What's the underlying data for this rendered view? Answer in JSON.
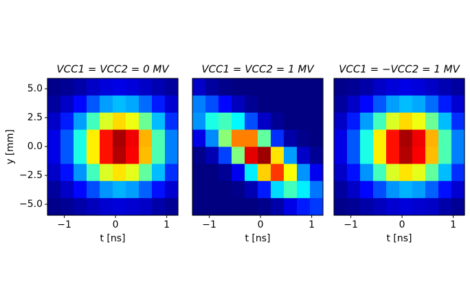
{
  "chart_data": [
    {
      "type": "heatmap",
      "title": "VCC1 = VCC2 = 0 MV",
      "xlabel": "t [ns]",
      "ylabel": "y [mm]",
      "colormap": "jet",
      "xlim": [
        -1.33,
        1.22
      ],
      "ylim": [
        -5.95,
        5.9
      ],
      "xticks": [
        {
          "value": -1,
          "label": "−1"
        },
        0,
        1
      ],
      "yticks": [
        {
          "value": 5,
          "label": "5.0"
        },
        {
          "value": 2.5,
          "label": "2.5"
        },
        {
          "value": 0,
          "label": "0.0"
        },
        {
          "value": -2.5,
          "label": "−2.5"
        },
        {
          "value": -5,
          "label": "−5.0"
        }
      ],
      "z": [
        [
          0.01,
          0.02,
          0.04,
          0.07,
          0.09,
          0.1,
          0.09,
          0.07,
          0.05,
          0.03
        ],
        [
          0.03,
          0.07,
          0.13,
          0.21,
          0.28,
          0.31,
          0.29,
          0.23,
          0.15,
          0.08
        ],
        [
          0.07,
          0.15,
          0.28,
          0.44,
          0.59,
          0.66,
          0.61,
          0.48,
          0.31,
          0.17
        ],
        [
          0.1,
          0.21,
          0.4,
          0.64,
          0.86,
          0.96,
          0.89,
          0.7,
          0.45,
          0.25
        ],
        [
          0.1,
          0.21,
          0.4,
          0.64,
          0.86,
          0.95,
          0.88,
          0.69,
          0.45,
          0.25
        ],
        [
          0.07,
          0.14,
          0.27,
          0.44,
          0.59,
          0.65,
          0.6,
          0.47,
          0.31,
          0.17
        ],
        [
          0.03,
          0.07,
          0.13,
          0.2,
          0.27,
          0.3,
          0.28,
          0.22,
          0.14,
          0.08
        ],
        [
          0.01,
          0.02,
          0.04,
          0.06,
          0.08,
          0.09,
          0.08,
          0.07,
          0.04,
          0.02
        ]
      ]
    },
    {
      "type": "heatmap",
      "title": "VCC1 = VCC2 = 1 MV",
      "xlabel": "t [ns]",
      "colormap": "jet",
      "xlim": [
        -1.33,
        1.22
      ],
      "ylim": [
        -5.95,
        5.9
      ],
      "xticks": [
        {
          "value": -1,
          "label": "−1"
        },
        0,
        1
      ],
      "z": [
        [
          0.07,
          0.03,
          0.01,
          0,
          0,
          0,
          0,
          0,
          0,
          0
        ],
        [
          0.25,
          0.2,
          0.13,
          0.06,
          0.02,
          0,
          0,
          0,
          0,
          0
        ],
        [
          0.27,
          0.4,
          0.44,
          0.37,
          0.2,
          0.07,
          0.02,
          0,
          0,
          0
        ],
        [
          0.1,
          0.26,
          0.51,
          0.75,
          0.75,
          0.47,
          0.17,
          0.04,
          0.01,
          0
        ],
        [
          0.01,
          0.05,
          0.19,
          0.5,
          0.9,
          0.97,
          0.65,
          0.28,
          0.07,
          0.02
        ],
        [
          0,
          0,
          0.02,
          0.11,
          0.36,
          0.67,
          0.82,
          0.62,
          0.27,
          0.11
        ],
        [
          0,
          0,
          0,
          0.01,
          0.05,
          0.15,
          0.34,
          0.44,
          0.36,
          0.24
        ],
        [
          0,
          0,
          0,
          0,
          0,
          0.01,
          0.04,
          0.1,
          0.15,
          0.18
        ]
      ]
    },
    {
      "type": "heatmap",
      "title": "VCC1 = −VCC2 = 1 MV",
      "xlabel": "t [ns]",
      "colormap": "jet",
      "xlim": [
        -1.33,
        1.22
      ],
      "ylim": [
        -5.95,
        5.9
      ],
      "xticks": [
        {
          "value": -1,
          "label": "−1"
        },
        0,
        1
      ],
      "z": [
        [
          0.01,
          0.02,
          0.04,
          0.07,
          0.09,
          0.1,
          0.09,
          0.07,
          0.05,
          0.03
        ],
        [
          0.03,
          0.07,
          0.13,
          0.21,
          0.28,
          0.31,
          0.29,
          0.23,
          0.15,
          0.08
        ],
        [
          0.07,
          0.15,
          0.28,
          0.44,
          0.59,
          0.66,
          0.61,
          0.48,
          0.31,
          0.17
        ],
        [
          0.1,
          0.21,
          0.4,
          0.64,
          0.86,
          0.96,
          0.89,
          0.7,
          0.45,
          0.25
        ],
        [
          0.1,
          0.21,
          0.4,
          0.64,
          0.86,
          0.95,
          0.88,
          0.69,
          0.45,
          0.25
        ],
        [
          0.07,
          0.14,
          0.27,
          0.44,
          0.59,
          0.65,
          0.6,
          0.47,
          0.31,
          0.17
        ],
        [
          0.03,
          0.07,
          0.13,
          0.2,
          0.27,
          0.3,
          0.28,
          0.22,
          0.14,
          0.08
        ],
        [
          0.01,
          0.02,
          0.04,
          0.06,
          0.08,
          0.09,
          0.08,
          0.07,
          0.04,
          0.02
        ]
      ]
    }
  ]
}
